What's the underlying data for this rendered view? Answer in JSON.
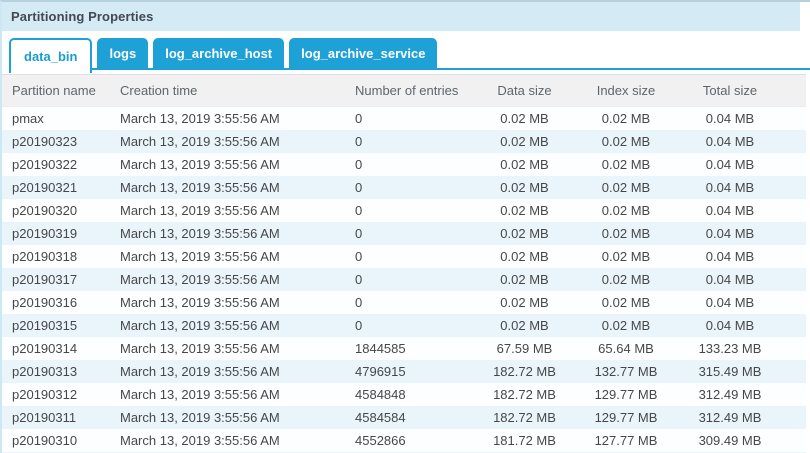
{
  "panel": {
    "title": "Partitioning Properties"
  },
  "tabs": {
    "active_index": 0,
    "items": [
      "data_bin",
      "logs",
      "log_archive_host",
      "log_archive_service"
    ]
  },
  "table": {
    "columns": [
      "Partition name",
      "Creation time",
      "Number of entries",
      "Data size",
      "Index size",
      "Total size"
    ],
    "rows": [
      {
        "partition": "pmax",
        "creation_time": "March 13, 2019 3:55:56 AM",
        "entries": "0",
        "data_size": "0.02 MB",
        "index_size": "0.02 MB",
        "total_size": "0.04 MB"
      },
      {
        "partition": "p20190323",
        "creation_time": "March 13, 2019 3:55:56 AM",
        "entries": "0",
        "data_size": "0.02 MB",
        "index_size": "0.02 MB",
        "total_size": "0.04 MB"
      },
      {
        "partition": "p20190322",
        "creation_time": "March 13, 2019 3:55:56 AM",
        "entries": "0",
        "data_size": "0.02 MB",
        "index_size": "0.02 MB",
        "total_size": "0.04 MB"
      },
      {
        "partition": "p20190321",
        "creation_time": "March 13, 2019 3:55:56 AM",
        "entries": "0",
        "data_size": "0.02 MB",
        "index_size": "0.02 MB",
        "total_size": "0.04 MB"
      },
      {
        "partition": "p20190320",
        "creation_time": "March 13, 2019 3:55:56 AM",
        "entries": "0",
        "data_size": "0.02 MB",
        "index_size": "0.02 MB",
        "total_size": "0.04 MB"
      },
      {
        "partition": "p20190319",
        "creation_time": "March 13, 2019 3:55:56 AM",
        "entries": "0",
        "data_size": "0.02 MB",
        "index_size": "0.02 MB",
        "total_size": "0.04 MB"
      },
      {
        "partition": "p20190318",
        "creation_time": "March 13, 2019 3:55:56 AM",
        "entries": "0",
        "data_size": "0.02 MB",
        "index_size": "0.02 MB",
        "total_size": "0.04 MB"
      },
      {
        "partition": "p20190317",
        "creation_time": "March 13, 2019 3:55:56 AM",
        "entries": "0",
        "data_size": "0.02 MB",
        "index_size": "0.02 MB",
        "total_size": "0.04 MB"
      },
      {
        "partition": "p20190316",
        "creation_time": "March 13, 2019 3:55:56 AM",
        "entries": "0",
        "data_size": "0.02 MB",
        "index_size": "0.02 MB",
        "total_size": "0.04 MB"
      },
      {
        "partition": "p20190315",
        "creation_time": "March 13, 2019 3:55:56 AM",
        "entries": "0",
        "data_size": "0.02 MB",
        "index_size": "0.02 MB",
        "total_size": "0.04 MB"
      },
      {
        "partition": "p20190314",
        "creation_time": "March 13, 2019 3:55:56 AM",
        "entries": "1844585",
        "data_size": "67.59 MB",
        "index_size": "65.64 MB",
        "total_size": "133.23 MB"
      },
      {
        "partition": "p20190313",
        "creation_time": "March 13, 2019 3:55:56 AM",
        "entries": "4796915",
        "data_size": "182.72 MB",
        "index_size": "132.77 MB",
        "total_size": "315.49 MB"
      },
      {
        "partition": "p20190312",
        "creation_time": "March 13, 2019 3:55:56 AM",
        "entries": "4584848",
        "data_size": "182.72 MB",
        "index_size": "129.77 MB",
        "total_size": "312.49 MB"
      },
      {
        "partition": "p20190311",
        "creation_time": "March 13, 2019 3:55:56 AM",
        "entries": "4584584",
        "data_size": "182.72 MB",
        "index_size": "129.77 MB",
        "total_size": "312.49 MB"
      },
      {
        "partition": "p20190310",
        "creation_time": "March 13, 2019 3:55:56 AM",
        "entries": "4552866",
        "data_size": "181.72 MB",
        "index_size": "127.77 MB",
        "total_size": "309.49 MB"
      }
    ]
  },
  "colors": {
    "accent_blue": "#1ea1d6",
    "active_tab_text": "#199cd2",
    "titlebar_bg": "#d4ebf6",
    "header_row_bg": "#f1f1f1",
    "row_alt_bg": "#e9f5fb"
  }
}
